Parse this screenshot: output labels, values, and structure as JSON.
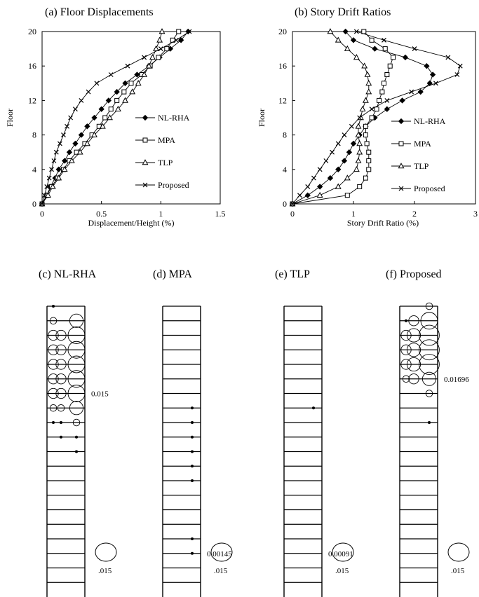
{
  "chart_data": [
    {
      "id": "a",
      "type": "line",
      "title": "(a) Floor Displacements",
      "xlabel": "Displacement/Height (%)",
      "ylabel": "Floor",
      "xlim": [
        0,
        1.5
      ],
      "ylim": [
        0,
        20
      ],
      "xticks": [
        "0",
        "0.5",
        "1",
        "1.5"
      ],
      "yticks": [
        "0",
        "4",
        "8",
        "12",
        "16",
        "20"
      ],
      "legend_position": "right",
      "floors": [
        0,
        1,
        2,
        3,
        4,
        5,
        6,
        7,
        8,
        9,
        10,
        11,
        12,
        13,
        14,
        15,
        16,
        17,
        18,
        19,
        20
      ],
      "series": [
        {
          "name": "NL-RHA",
          "marker": "diamond",
          "values": [
            0,
            0.04,
            0.07,
            0.11,
            0.14,
            0.19,
            0.23,
            0.28,
            0.33,
            0.38,
            0.44,
            0.5,
            0.56,
            0.63,
            0.7,
            0.8,
            0.9,
            0.99,
            1.08,
            1.17,
            1.23
          ]
        },
        {
          "name": "MPA",
          "marker": "square",
          "values": [
            0,
            0.04,
            0.08,
            0.13,
            0.18,
            0.23,
            0.29,
            0.36,
            0.42,
            0.48,
            0.53,
            0.58,
            0.63,
            0.69,
            0.75,
            0.84,
            0.91,
            0.98,
            1.05,
            1.1,
            1.15
          ]
        },
        {
          "name": "TLP",
          "marker": "triangle",
          "values": [
            0,
            0.05,
            0.09,
            0.14,
            0.19,
            0.25,
            0.32,
            0.38,
            0.44,
            0.51,
            0.57,
            0.64,
            0.7,
            0.76,
            0.81,
            0.86,
            0.9,
            0.93,
            0.96,
            0.99,
            1.01
          ]
        },
        {
          "name": "Proposed",
          "marker": "x",
          "values": [
            0,
            0.02,
            0.04,
            0.06,
            0.08,
            0.1,
            0.12,
            0.15,
            0.18,
            0.21,
            0.24,
            0.28,
            0.33,
            0.39,
            0.46,
            0.58,
            0.72,
            0.86,
            1.0,
            1.13,
            1.24
          ]
        }
      ]
    },
    {
      "id": "b",
      "type": "line",
      "title": "(b) Story Drift Ratios",
      "xlabel": "Story Drift Ratio (%)",
      "ylabel": "Floor",
      "xlim": [
        0,
        3
      ],
      "ylim": [
        0,
        20
      ],
      "xticks": [
        "0",
        "1",
        "2",
        "3"
      ],
      "yticks": [
        "0",
        "4",
        "8",
        "12",
        "16",
        "20"
      ],
      "legend_position": "right",
      "floors": [
        0,
        1,
        2,
        3,
        4,
        5,
        6,
        7,
        8,
        9,
        10,
        11,
        12,
        13,
        14,
        15,
        16,
        17,
        18,
        19,
        20
      ],
      "series": [
        {
          "name": "NL-RHA",
          "marker": "diamond",
          "values": [
            0,
            0.25,
            0.45,
            0.62,
            0.75,
            0.85,
            0.93,
            1.0,
            1.1,
            1.2,
            1.35,
            1.55,
            1.8,
            2.1,
            2.25,
            2.3,
            2.2,
            1.85,
            1.35,
            1.0,
            0.87
          ]
        },
        {
          "name": "MPA",
          "marker": "square",
          "values": [
            0,
            0.9,
            1.1,
            1.2,
            1.25,
            1.25,
            1.25,
            1.22,
            1.2,
            1.2,
            1.3,
            1.38,
            1.42,
            1.47,
            1.5,
            1.55,
            1.6,
            1.65,
            1.52,
            1.3,
            1.17
          ]
        },
        {
          "name": "TLP",
          "marker": "triangle",
          "values": [
            0,
            0.45,
            0.75,
            0.9,
            1.05,
            1.08,
            1.1,
            1.1,
            1.08,
            1.08,
            1.12,
            1.15,
            1.2,
            1.25,
            1.25,
            1.23,
            1.18,
            1.05,
            0.9,
            0.75,
            0.62
          ]
        },
        {
          "name": "Proposed",
          "marker": "x",
          "values": [
            0,
            0.12,
            0.25,
            0.35,
            0.45,
            0.55,
            0.65,
            0.75,
            0.85,
            0.97,
            1.1,
            1.3,
            1.55,
            1.95,
            2.35,
            2.7,
            2.75,
            2.55,
            2.0,
            1.5,
            1.05
          ]
        }
      ]
    }
  ],
  "frames": [
    {
      "id": "c",
      "title": "(c) NL-RHA",
      "stories": 20,
      "peak_label": "0.015",
      "peak_floor": 14,
      "scale_label": ".015",
      "hinges": [
        {
          "floor": 20,
          "row": [
            1,
            0,
            0
          ]
        },
        {
          "floor": 19,
          "row": [
            2,
            0,
            4
          ]
        },
        {
          "floor": 18,
          "row": [
            3,
            3,
            5
          ]
        },
        {
          "floor": 17,
          "row": [
            3,
            3,
            5
          ]
        },
        {
          "floor": 16,
          "row": [
            3,
            3,
            5
          ]
        },
        {
          "floor": 15,
          "row": [
            3,
            3,
            5
          ]
        },
        {
          "floor": 14,
          "row": [
            3,
            3,
            5
          ]
        },
        {
          "floor": 13,
          "row": [
            2,
            2,
            4
          ]
        },
        {
          "floor": 12,
          "row": [
            1,
            1,
            2
          ]
        },
        {
          "floor": 11,
          "row": [
            0,
            1,
            1
          ]
        },
        {
          "floor": 10,
          "row": [
            0,
            0,
            1
          ]
        }
      ]
    },
    {
      "id": "d",
      "title": "(d) MPA",
      "stories": 20,
      "peak_label": "0.00145",
      "peak_floor": 3,
      "scale_label": ".015",
      "hinges": [
        {
          "floor": 13,
          "row": [
            0,
            0,
            1
          ]
        },
        {
          "floor": 12,
          "row": [
            0,
            0,
            1
          ]
        },
        {
          "floor": 11,
          "row": [
            0,
            0,
            1
          ]
        },
        {
          "floor": 10,
          "row": [
            0,
            0,
            1
          ]
        },
        {
          "floor": 9,
          "row": [
            0,
            0,
            1
          ]
        },
        {
          "floor": 8,
          "row": [
            0,
            0,
            1
          ]
        },
        {
          "floor": 4,
          "row": [
            0,
            0,
            1
          ]
        },
        {
          "floor": 3,
          "row": [
            0,
            0,
            1
          ]
        }
      ]
    },
    {
      "id": "e",
      "title": "(e) TLP",
      "stories": 20,
      "peak_label": "0.00091",
      "peak_floor": 3,
      "scale_label": ".015",
      "hinges": [
        {
          "floor": 13,
          "row": [
            0,
            0,
            1
          ]
        }
      ]
    },
    {
      "id": "f",
      "title": "(f) Proposed",
      "stories": 20,
      "peak_label": "0.01696",
      "peak_floor": 15,
      "scale_label": ".015",
      "hinges": [
        {
          "floor": 20,
          "row": [
            0,
            0,
            2
          ]
        },
        {
          "floor": 19,
          "row": [
            1,
            3,
            5
          ]
        },
        {
          "floor": 18,
          "row": [
            3,
            4,
            6
          ]
        },
        {
          "floor": 17,
          "row": [
            3,
            4,
            6
          ]
        },
        {
          "floor": 16,
          "row": [
            3,
            4,
            6
          ]
        },
        {
          "floor": 15,
          "row": [
            2,
            3,
            4
          ]
        },
        {
          "floor": 14,
          "row": [
            0,
            0,
            2
          ]
        },
        {
          "floor": 12,
          "row": [
            0,
            0,
            1
          ]
        }
      ]
    }
  ]
}
